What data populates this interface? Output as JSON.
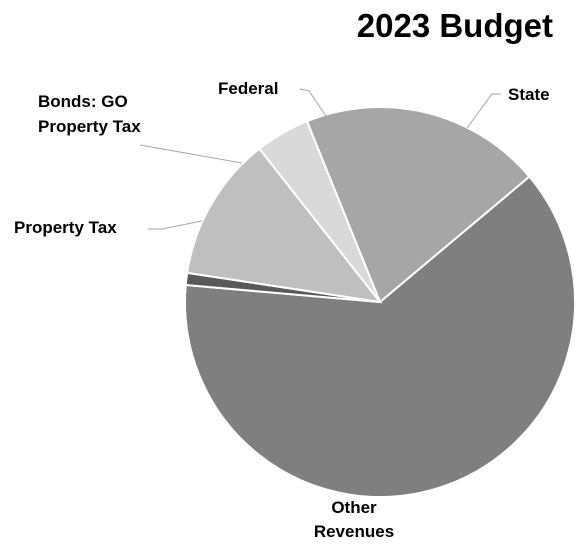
{
  "chart_data": {
    "type": "pie",
    "title": "2023 Budget",
    "slices": [
      {
        "label": "State",
        "value": 20.0,
        "color": "#a6a6a6"
      },
      {
        "label": "Other Revenues",
        "value": 62.5,
        "color": "#7f7f7f"
      },
      {
        "label": "Property Tax",
        "value": 1.0,
        "color": "#595959"
      },
      {
        "label": "Bonds: GO Property Tax",
        "value": 12.0,
        "color": "#bfbfbf"
      },
      {
        "label": "Federal",
        "value": 4.5,
        "color": "#d9d9d9"
      }
    ],
    "legend": "none"
  }
}
